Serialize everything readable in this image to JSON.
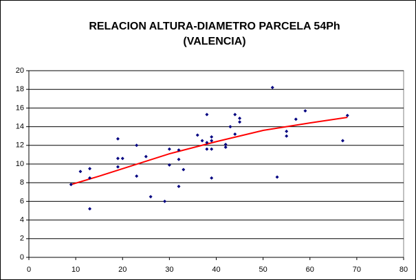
{
  "chart_data": {
    "type": "scatter",
    "title_lines": [
      "RELACION ALTURA-DIAMETRO PARCELA 54Ph",
      "(VALENCIA)"
    ],
    "series": [
      {
        "color": "#000080",
        "x": [
          9,
          11,
          13,
          13,
          13,
          19,
          19,
          19,
          20,
          23,
          23,
          25,
          26,
          29,
          30,
          30,
          32,
          32,
          32,
          33,
          36,
          37,
          38,
          38,
          38,
          39,
          39,
          39,
          39,
          42,
          42,
          43,
          44,
          44,
          45,
          45,
          52,
          53,
          55,
          55,
          57,
          59,
          67,
          68
        ],
        "values": [
          7.8,
          9.2,
          9.5,
          8.5,
          5.2,
          12.7,
          10.6,
          9.7,
          10.6,
          12,
          8.7,
          10.8,
          6.5,
          6,
          11.6,
          9.9,
          11.5,
          10.5,
          7.6,
          9.4,
          13.1,
          12.5,
          15.3,
          12.3,
          11.6,
          12.9,
          12.5,
          11.6,
          8.5,
          12.1,
          11.8,
          14,
          15.3,
          13.2,
          14.9,
          14.5,
          18.2,
          8.6,
          13.5,
          13,
          14.8,
          15.7,
          12.5,
          15.2
        ]
      }
    ],
    "trendline": {
      "color": "#ff0000",
      "x": [
        9,
        15,
        20,
        30,
        40,
        50,
        60,
        68
      ],
      "values": [
        7.8,
        8.7,
        9.5,
        11.1,
        12.4,
        13.6,
        14.4,
        15
      ]
    },
    "xlim": [
      0,
      80
    ],
    "xticks": [
      0,
      10,
      20,
      30,
      40,
      50,
      60,
      70,
      80
    ],
    "ylim": [
      0,
      20
    ],
    "yticks": [
      0,
      2,
      4,
      6,
      8,
      10,
      12,
      14,
      16,
      18,
      20
    ],
    "grid": true
  }
}
